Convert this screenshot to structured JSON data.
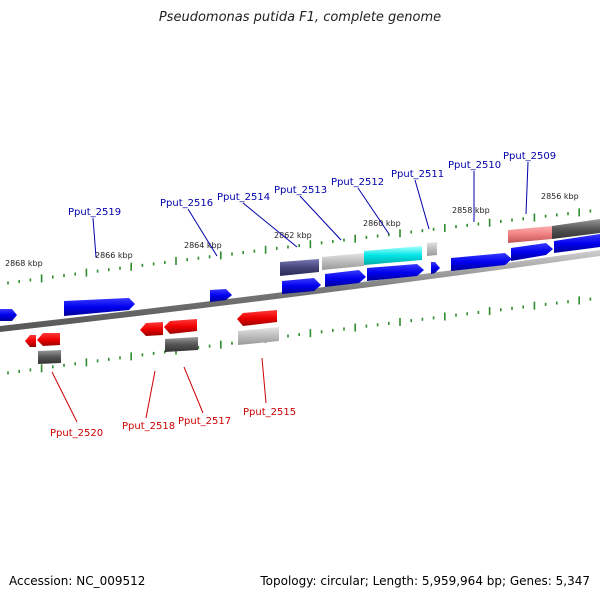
{
  "title": "Pseudomonas putida F1, complete genome",
  "footer": {
    "accession": "Accession: NC_009512",
    "topology": "Topology: circular; Length: 5,959,964 bp; Genes: 5,347"
  },
  "colors": {
    "backbone": "#8a8a8a",
    "tick": "#2e8b2e",
    "forward_gene": "#0000ee",
    "reverse_gene": "#ee0000",
    "forward_label": "#0000aa",
    "reverse_label": "#cc0000"
  },
  "kbp_labels": [
    "2868 kbp",
    "2866 kbp",
    "2864 kbp",
    "2862 kbp",
    "2860 kbp",
    "2858 kbp",
    "2856 kbp"
  ],
  "forward_genes": [
    "Pput_2519",
    "Pput_2516",
    "Pput_2514",
    "Pput_2513",
    "Pput_2512",
    "Pput_2511",
    "Pput_2510",
    "Pput_2509"
  ],
  "reverse_genes": [
    "Pput_2520",
    "Pput_2518",
    "Pput_2517",
    "Pput_2515"
  ]
}
